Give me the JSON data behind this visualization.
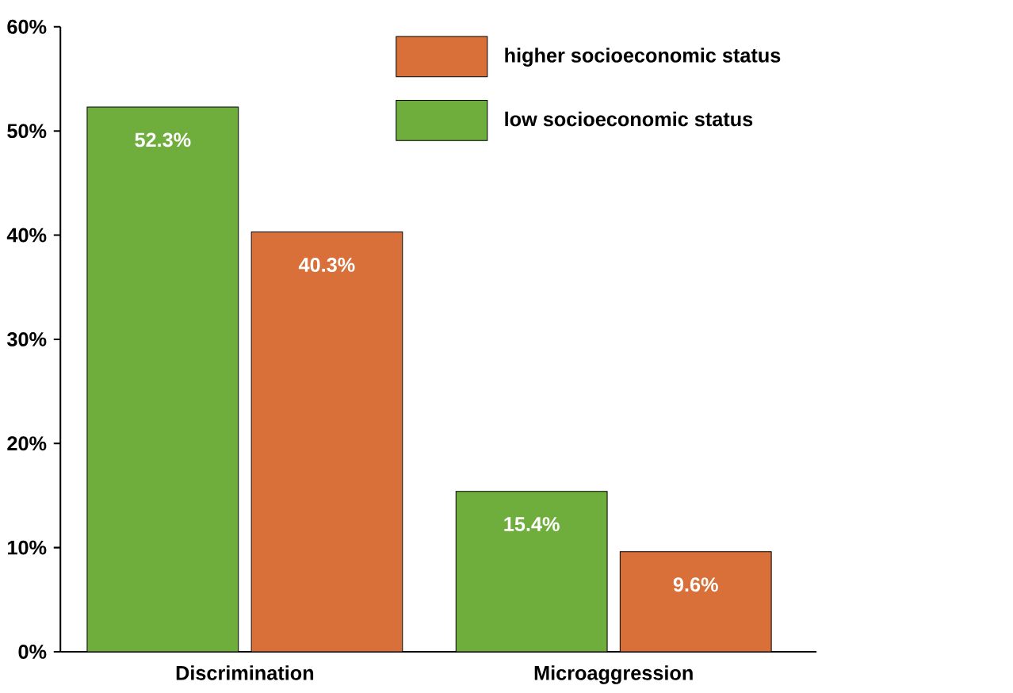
{
  "chart_data": {
    "type": "bar",
    "categories": [
      "Discrimination",
      "Microaggression"
    ],
    "series": [
      {
        "name": "low socioeconomic status",
        "color": "#6fae3c",
        "values": [
          52.3,
          15.4
        ],
        "value_labels": [
          "52.3%",
          "15.4%"
        ]
      },
      {
        "name": "higher socioeconomic status",
        "color": "#d9703a",
        "values": [
          40.3,
          9.6
        ],
        "value_labels": [
          "40.3%",
          "9.6%"
        ]
      }
    ],
    "ylim": [
      0,
      60
    ],
    "yticks": [
      {
        "value": 0,
        "label": "0%"
      },
      {
        "value": 10,
        "label": "10%"
      },
      {
        "value": 20,
        "label": "20%"
      },
      {
        "value": 30,
        "label": "30%"
      },
      {
        "value": 40,
        "label": "40%"
      },
      {
        "value": 50,
        "label": "50%"
      },
      {
        "value": 60,
        "label": "60%"
      }
    ],
    "grid": false,
    "legend": "top right"
  }
}
